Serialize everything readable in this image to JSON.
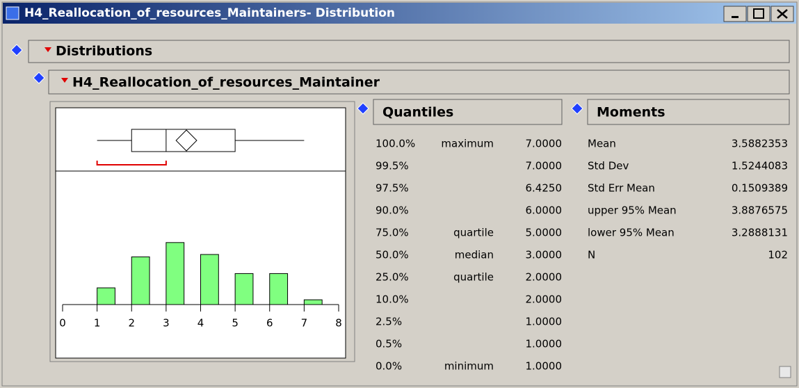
{
  "window": {
    "title": "H4_Reallocation_of_resources_Maintainers- Distribution"
  },
  "outline": {
    "title": "Distributions",
    "report": {
      "title": "H4_Reallocation_of_resources_Maintainer"
    }
  },
  "chart_data": {
    "type": "histogram",
    "bins": [
      1,
      2,
      3,
      4,
      5,
      6,
      7,
      8
    ],
    "counts": [
      7,
      20,
      26,
      21,
      13,
      13,
      2
    ],
    "color": "#80ff80",
    "xlim": [
      0,
      8
    ],
    "xticks": [
      0,
      1,
      2,
      3,
      4,
      5,
      6,
      7,
      8
    ],
    "shortest_half": [
      1,
      3
    ]
  },
  "quantiles": {
    "title": "Quantiles",
    "rows": [
      {
        "percent": "100.0%",
        "label": "maximum",
        "value": "7.0000"
      },
      {
        "percent": "99.5%",
        "value": "7.0000"
      },
      {
        "percent": "97.5%",
        "value": "6.4250"
      },
      {
        "percent": "90.0%",
        "value": "6.0000"
      },
      {
        "percent": "75.0%",
        "label": "quartile",
        "value": "5.0000"
      },
      {
        "percent": "50.0%",
        "label": "median",
        "value": "3.0000"
      },
      {
        "percent": "25.0%",
        "label": "quartile",
        "value": "2.0000"
      },
      {
        "percent": "10.0%",
        "value": "2.0000"
      },
      {
        "percent": "2.5%",
        "value": "1.0000"
      },
      {
        "percent": "0.5%",
        "value": "1.0000"
      },
      {
        "percent": "0.0%",
        "label": "minimum",
        "value": "1.0000"
      }
    ]
  },
  "moments": {
    "title": "Moments",
    "rows": [
      {
        "name": "Mean",
        "value": "3.5882353"
      },
      {
        "name": "Std Dev",
        "value": "1.5244083"
      },
      {
        "name": "Std Err Mean",
        "value": "0.1509389"
      },
      {
        "name": "upper 95% Mean",
        "value": "3.8876575"
      },
      {
        "name": "lower 95% Mean",
        "value": "3.2888131"
      },
      {
        "name": "N",
        "value": "102"
      }
    ]
  }
}
